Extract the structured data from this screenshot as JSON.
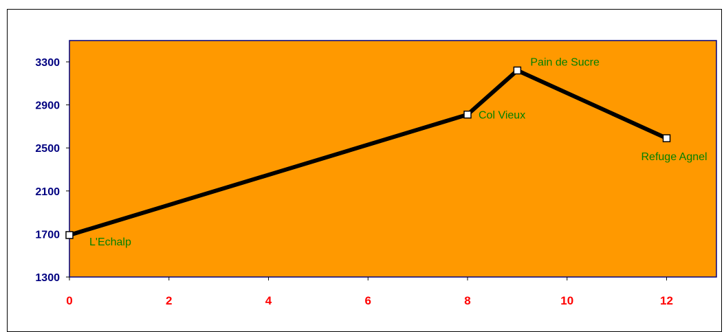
{
  "chart_data": {
    "type": "line",
    "title": "",
    "xlabel": "",
    "ylabel": "",
    "xlim": [
      0,
      13
    ],
    "ylim": [
      1300,
      3500
    ],
    "x_ticks": [
      0,
      2,
      4,
      6,
      8,
      10,
      12
    ],
    "y_ticks": [
      1300,
      1700,
      2100,
      2500,
      2900,
      3300
    ],
    "x_tick_labels": [
      "0",
      "2",
      "4",
      "6",
      "8",
      "10",
      "12"
    ],
    "y_tick_labels": [
      "1300",
      "1700",
      "2100",
      "2500",
      "2900",
      "3300"
    ],
    "grid": false,
    "legend": "none",
    "series": [
      {
        "points": [
          {
            "x": 0,
            "y": 1690,
            "label": "L'Echalp"
          },
          {
            "x": 8,
            "y": 2810,
            "label": "Col Vieux"
          },
          {
            "x": 9,
            "y": 3220,
            "label": "Pain de Sucre"
          },
          {
            "x": 12,
            "y": 2590,
            "label": "Refuge Agnel"
          }
        ]
      }
    ],
    "colors": {
      "plot_background": "#FF9900",
      "plot_border": "#000080",
      "line": "#000000",
      "marker_fill": "#FFFFFF",
      "y_tick_text": "#000080",
      "x_tick_text": "#FF0000",
      "point_label_text": "#008000"
    }
  }
}
